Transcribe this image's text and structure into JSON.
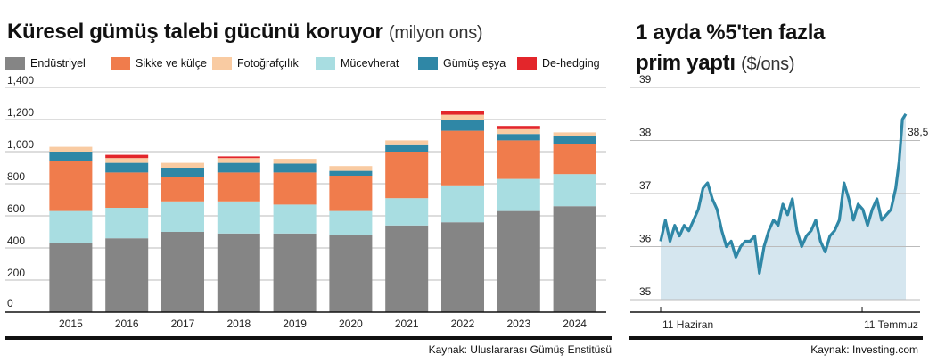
{
  "left_chart": {
    "title": "Küresel gümüş talebi gücünü koruyor",
    "unit": "(milyon ons)",
    "source": "Kaynak: Uluslararası Gümüş Enstitüsü"
  },
  "right_chart": {
    "title_line1": "1 ayda %5'ten fazla",
    "title_line2": "prim yaptı",
    "unit": "($/ons)",
    "source": "Kaynak: Investing.com"
  },
  "colors": {
    "Endüstriyel": "#858585",
    "Mücevherat": "#a8dde1",
    "Sikke ve külçe": "#f07c4c",
    "Gümüş eşya": "#2f87a6",
    "Fotoğrafçılık": "#f9cba2",
    "De-hedging": "#e3262b",
    "line": "#2f87a6",
    "area": "#d5e6ef"
  },
  "chart_data": [
    {
      "type": "bar",
      "stacked": true,
      "categories": [
        "2015",
        "2016",
        "2017",
        "2018",
        "2019",
        "2020",
        "2021",
        "2022",
        "2023",
        "2024"
      ],
      "ylim": [
        0,
        1400
      ],
      "yticks": [
        0,
        200,
        400,
        600,
        800,
        "1,000",
        "1,200",
        "1,400"
      ],
      "legend": [
        "Endüstriyel",
        "Sikke ve külçe",
        "Fotoğrafçılık",
        "Mücevherat",
        "Gümüş eşya",
        "De-hedging"
      ],
      "series": [
        {
          "name": "Endüstriyel",
          "values": [
            430,
            460,
            500,
            490,
            490,
            480,
            540,
            560,
            630,
            660
          ]
        },
        {
          "name": "Mücevherat",
          "values": [
            200,
            190,
            190,
            200,
            180,
            150,
            170,
            230,
            200,
            200
          ]
        },
        {
          "name": "Sikke ve külçe",
          "values": [
            310,
            220,
            150,
            180,
            200,
            220,
            290,
            340,
            240,
            190
          ]
        },
        {
          "name": "Gümüş eşya",
          "values": [
            60,
            60,
            60,
            60,
            55,
            30,
            40,
            70,
            40,
            50
          ]
        },
        {
          "name": "Fotoğrafçılık",
          "values": [
            30,
            30,
            30,
            30,
            30,
            30,
            30,
            30,
            30,
            20
          ]
        },
        {
          "name": "De-hedging",
          "values": [
            0,
            20,
            0,
            10,
            0,
            0,
            0,
            20,
            20,
            0
          ]
        }
      ]
    },
    {
      "type": "area",
      "ylim": [
        35,
        39
      ],
      "yticks": [
        35,
        36,
        37,
        38,
        39
      ],
      "xtick_labels": [
        {
          "label": "11 Haziran",
          "x": 0
        },
        {
          "label": "11 Temmuz",
          "x": 30
        }
      ],
      "x": [
        0,
        0.7,
        1.4,
        2.1,
        2.8,
        3.5,
        4.2,
        4.9,
        5.6,
        6.3,
        7,
        7.7,
        8.4,
        9.1,
        9.8,
        10.5,
        11.2,
        11.9,
        12.6,
        13.3,
        14,
        14.7,
        15.4,
        16.1,
        16.8,
        17.5,
        18.2,
        18.9,
        19.6,
        20.3,
        21,
        21.7,
        22.4,
        23.1,
        23.8,
        24.5,
        25.2,
        25.9,
        26.6,
        27.3,
        28,
        28.7,
        29.4,
        30.1,
        30.8,
        31.5,
        32.2,
        32.9,
        33.6,
        34.3,
        35,
        35.5,
        36,
        36.5
      ],
      "y": [
        36.1,
        36.5,
        36.1,
        36.4,
        36.2,
        36.4,
        36.3,
        36.5,
        36.7,
        37.1,
        37.2,
        36.9,
        36.7,
        36.3,
        36,
        36.1,
        35.8,
        36,
        36.1,
        36.1,
        36.2,
        35.5,
        36,
        36.3,
        36.5,
        36.4,
        36.8,
        36.6,
        36.9,
        36.3,
        36,
        36.2,
        36.3,
        36.5,
        36.1,
        35.9,
        36.2,
        36.3,
        36.5,
        37.2,
        36.9,
        36.5,
        36.8,
        36.7,
        36.4,
        36.7,
        36.9,
        36.5,
        36.6,
        36.7,
        37.1,
        37.6,
        38.4,
        38.5
      ],
      "end_label": "38,5"
    }
  ]
}
